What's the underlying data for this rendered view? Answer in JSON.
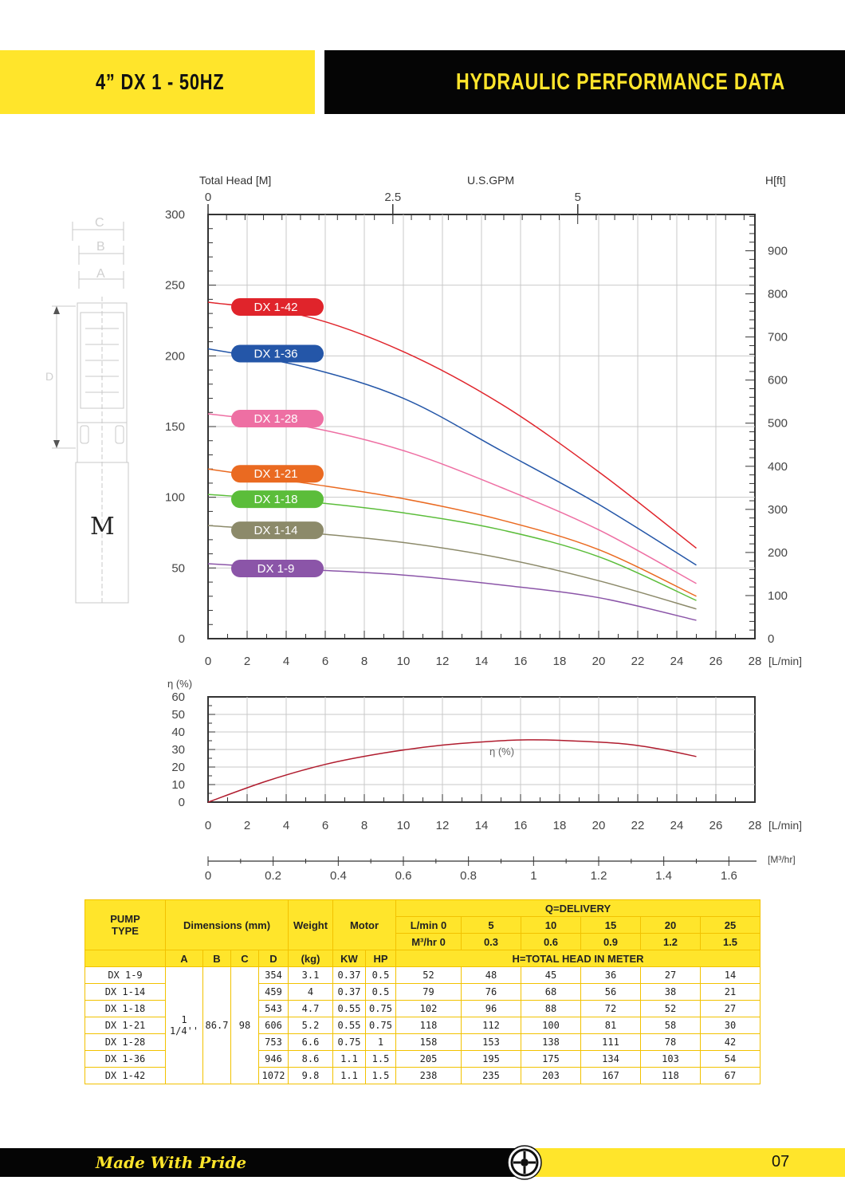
{
  "header": {
    "model": "4” DX 1 - 50HZ",
    "title": "HYDRAULIC PERFORMANCE DATA"
  },
  "drawing": {
    "label_c": "C",
    "label_b": "B",
    "label_a": "A",
    "label_d": "D",
    "label_m": "M"
  },
  "chart_data": {
    "type": "line",
    "top_labels": {
      "left": "Total Head [M]",
      "center": "U.S.GPM",
      "right": "H[ft]"
    },
    "x_unit": "[L/min]",
    "x_ticks": [
      0,
      2,
      4,
      6,
      8,
      10,
      12,
      14,
      16,
      18,
      20,
      22,
      24,
      26,
      28
    ],
    "xlim": [
      0,
      28
    ],
    "ylim": [
      0,
      300
    ],
    "y_ticks": [
      0,
      50,
      100,
      150,
      200,
      250,
      300
    ],
    "gpm_ticks": [
      {
        "label": "0",
        "lpm": 0
      },
      {
        "label": "2.5",
        "lpm": 9.46
      },
      {
        "label": "5",
        "lpm": 18.93
      }
    ],
    "ft_ticks": [
      0,
      100,
      200,
      300,
      400,
      500,
      600,
      700,
      800,
      900
    ],
    "series": [
      {
        "name": "DX 1-42",
        "color": "#e0242b",
        "x": [
          0,
          5,
          10,
          15,
          20,
          25
        ],
        "values": [
          238,
          228,
          203,
          166,
          118,
          64
        ]
      },
      {
        "name": "DX 1-36",
        "color": "#2456a8",
        "x": [
          0,
          5,
          10,
          15,
          20,
          25
        ],
        "values": [
          205,
          192,
          170,
          133,
          95,
          52
        ]
      },
      {
        "name": "DX 1-28",
        "color": "#ee6fa3",
        "x": [
          0,
          5,
          10,
          15,
          20,
          25
        ],
        "values": [
          159,
          150,
          133,
          107,
          77,
          39
        ]
      },
      {
        "name": "DX 1-21",
        "color": "#ea6a21",
        "x": [
          0,
          5,
          10,
          15,
          20,
          25
        ],
        "values": [
          120,
          110,
          99,
          84,
          63,
          30
        ]
      },
      {
        "name": "DX 1-18",
        "color": "#5bbd3a",
        "x": [
          0,
          5,
          10,
          15,
          20,
          25
        ],
        "values": [
          102,
          97,
          89,
          77,
          58,
          27
        ]
      },
      {
        "name": "DX 1-14",
        "color": "#8c8a6a",
        "x": [
          0,
          5,
          10,
          15,
          20,
          25
        ],
        "values": [
          80,
          75,
          68,
          57,
          41,
          21
        ]
      },
      {
        "name": "DX 1-9",
        "color": "#8b55a8",
        "x": [
          0,
          5,
          10,
          15,
          20,
          25
        ],
        "values": [
          53,
          49,
          45,
          38,
          29,
          13
        ]
      }
    ],
    "efficiency": {
      "ylabel": "η (%)",
      "label": "η (%)",
      "y_ticks": [
        0,
        10,
        20,
        30,
        40,
        50,
        60
      ],
      "ylim": [
        0,
        60
      ],
      "color": "#b01c2e",
      "x": [
        0,
        3,
        6,
        9,
        12,
        15,
        16.5,
        18,
        21,
        23,
        25
      ],
      "values": [
        0,
        12,
        21.5,
        28,
        32.5,
        35,
        35.5,
        35.2,
        33.5,
        30.5,
        26
      ]
    },
    "m3_unit": "[M³/hr]",
    "m3_ticks": [
      {
        "label": "0",
        "lpm": 0
      },
      {
        "label": "0.2",
        "lpm": 3.33
      },
      {
        "label": "0.4",
        "lpm": 6.67
      },
      {
        "label": "0.6",
        "lpm": 10
      },
      {
        "label": "0.8",
        "lpm": 13.33
      },
      {
        "label": "1",
        "lpm": 16.67
      },
      {
        "label": "1.2",
        "lpm": 20
      },
      {
        "label": "1.4",
        "lpm": 23.33
      },
      {
        "label": "1.6",
        "lpm": 26.67
      }
    ]
  },
  "table": {
    "h_pump": "PUMP",
    "h_type": "TYPE",
    "h_dims": "Dimensions (mm)",
    "h_weight": "Weight",
    "h_motor": "Motor",
    "h_delivery": "Q=DELIVERY",
    "h_lmin": "L/min 0",
    "h_m3": "M³/hr  0",
    "lmin": [
      "5",
      "10",
      "15",
      "20",
      "25"
    ],
    "m3hr": [
      "0.3",
      "0.6",
      "0.9",
      "1.2",
      "1.5"
    ],
    "h_a": "A",
    "h_b": "B",
    "h_c": "C",
    "h_d": "D",
    "h_kg": "(kg)",
    "h_kw": "KW",
    "h_hp": "HP",
    "h_head": "H=TOTAL HEAD IN METER",
    "a": "1 1/4''",
    "b": "86.7",
    "c": "98",
    "rows": [
      {
        "type": "DX 1-9",
        "d": "354",
        "kg": "3.1",
        "kw": "0.37",
        "hp": "0.5",
        "h": [
          "52",
          "48",
          "45",
          "36",
          "27",
          "14"
        ]
      },
      {
        "type": "DX 1-14",
        "d": "459",
        "kg": "4",
        "kw": "0.37",
        "hp": "0.5",
        "h": [
          "79",
          "76",
          "68",
          "56",
          "38",
          "21"
        ]
      },
      {
        "type": "DX 1-18",
        "d": "543",
        "kg": "4.7",
        "kw": "0.55",
        "hp": "0.75",
        "h": [
          "102",
          "96",
          "88",
          "72",
          "52",
          "27"
        ]
      },
      {
        "type": "DX 1-21",
        "d": "606",
        "kg": "5.2",
        "kw": "0.55",
        "hp": "0.75",
        "h": [
          "118",
          "112",
          "100",
          "81",
          "58",
          "30"
        ]
      },
      {
        "type": "DX 1-28",
        "d": "753",
        "kg": "6.6",
        "kw": "0.75",
        "hp": "1",
        "h": [
          "158",
          "153",
          "138",
          "111",
          "78",
          "42"
        ]
      },
      {
        "type": "DX 1-36",
        "d": "946",
        "kg": "8.6",
        "kw": "1.1",
        "hp": "1.5",
        "h": [
          "205",
          "195",
          "175",
          "134",
          "103",
          "54"
        ]
      },
      {
        "type": "DX 1-42",
        "d": "1072",
        "kg": "9.8",
        "kw": "1.1",
        "hp": "1.5",
        "h": [
          "238",
          "235",
          "203",
          "167",
          "118",
          "67"
        ]
      }
    ]
  },
  "footer": {
    "slogan": "Made With Pride",
    "page": "07"
  }
}
